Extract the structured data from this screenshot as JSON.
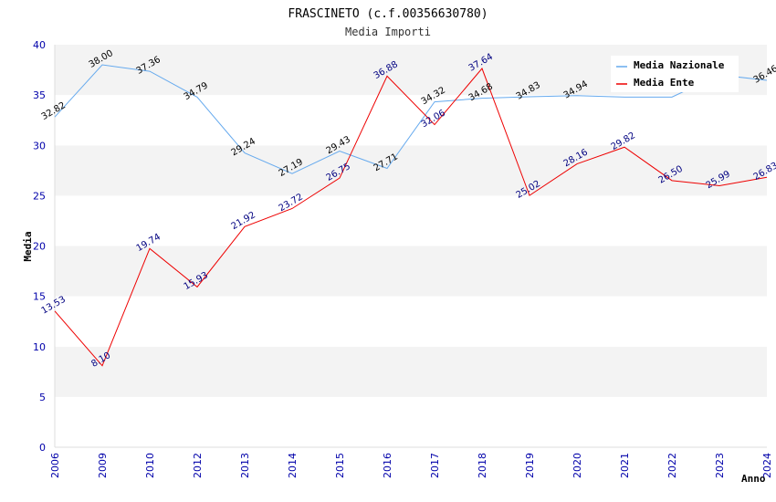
{
  "chart_data": {
    "type": "line",
    "title": "FRASCINETO (c.f.00356630780)",
    "subtitle": "Media Importi",
    "xlabel": "Anno",
    "ylabel": "Media",
    "ylim": [
      0,
      40
    ],
    "yticks": [
      0,
      5,
      10,
      15,
      20,
      25,
      30,
      35,
      40
    ],
    "grid": "horizontal bands",
    "legend_position": "top-right",
    "categories": [
      "2006",
      "2009",
      "2010",
      "2012",
      "2013",
      "2014",
      "2015",
      "2016",
      "2017",
      "2018",
      "2019",
      "2020",
      "2021",
      "2022",
      "2023",
      "2024"
    ],
    "series": [
      {
        "name": "Media Nazionale",
        "color": "#66aaee",
        "values": [
          32.82,
          38.0,
          37.36,
          34.79,
          29.24,
          27.19,
          29.43,
          27.71,
          34.32,
          34.68,
          34.83,
          34.94,
          34.8,
          34.8,
          37.0,
          36.46
        ],
        "labels": [
          "32.82",
          "38.00",
          "37.36",
          "34.79",
          "29.24",
          "27.19",
          "29.43",
          "27.71",
          "34.32",
          "34.68",
          "34.83",
          "34.94",
          "",
          "",
          "",
          "36.46"
        ]
      },
      {
        "name": "Media Ente",
        "color": "#ee0000",
        "values": [
          13.53,
          8.1,
          19.74,
          15.93,
          21.92,
          23.72,
          26.75,
          36.88,
          32.06,
          37.64,
          25.02,
          28.16,
          29.82,
          26.5,
          25.99,
          26.83
        ],
        "labels": [
          "13.53",
          "8.10",
          "19.74",
          "15.93",
          "21.92",
          "23.72",
          "26.75",
          "36.88",
          "32.06",
          "37.64",
          "25.02",
          "28.16",
          "29.82",
          "26.50",
          "25.99",
          "26.83"
        ]
      }
    ]
  }
}
